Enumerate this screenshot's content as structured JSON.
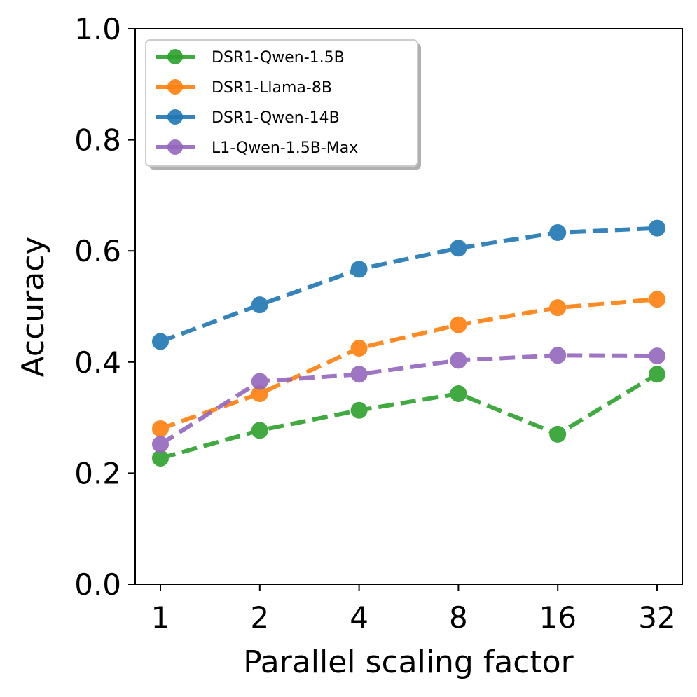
{
  "chart_data": {
    "type": "line",
    "title": "",
    "xlabel": "Parallel scaling factor",
    "ylabel": "Accuracy",
    "categories": [
      "1",
      "2",
      "4",
      "8",
      "16",
      "32"
    ],
    "ylim": [
      0.0,
      1.0
    ],
    "yticks": [
      "0.0",
      "0.2",
      "0.4",
      "0.6",
      "0.8",
      "1.0"
    ],
    "grid": false,
    "legend_position": "top-left",
    "series": [
      {
        "name": "DSR1-Qwen-1.5B",
        "color": "#2ca02c",
        "values": [
          0.227,
          0.277,
          0.313,
          0.343,
          0.27,
          0.378
        ]
      },
      {
        "name": "DSR1-Llama-8B",
        "color": "#ff7f0e",
        "values": [
          0.28,
          0.343,
          0.425,
          0.467,
          0.498,
          0.513
        ]
      },
      {
        "name": "DSR1-Qwen-14B",
        "color": "#1f77b4",
        "values": [
          0.437,
          0.503,
          0.567,
          0.605,
          0.633,
          0.641
        ]
      },
      {
        "name": "L1-Qwen-1.5B-Max",
        "color": "#9467bd",
        "values": [
          0.252,
          0.365,
          0.378,
          0.403,
          0.412,
          0.411
        ]
      }
    ]
  }
}
